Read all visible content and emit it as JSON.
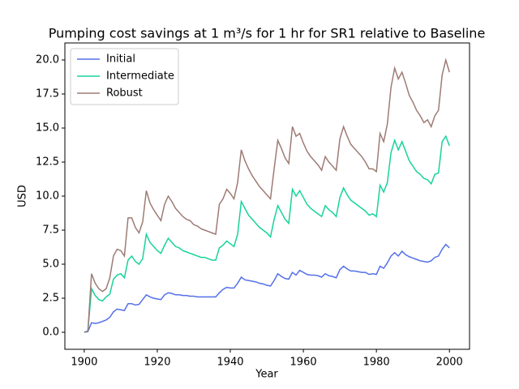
{
  "chart_data": {
    "type": "line",
    "title": "Pumping cost savings at 1 m³/s for 1 hr for SR1 relative to Baseline",
    "x_label": "Year",
    "y_label": "USD",
    "x": [
      1900,
      1901,
      1902,
      1903,
      1904,
      1905,
      1906,
      1907,
      1908,
      1909,
      1910,
      1911,
      1912,
      1913,
      1914,
      1915,
      1916,
      1917,
      1918,
      1919,
      1920,
      1921,
      1922,
      1923,
      1924,
      1925,
      1926,
      1927,
      1928,
      1929,
      1930,
      1931,
      1932,
      1933,
      1934,
      1935,
      1936,
      1937,
      1938,
      1939,
      1940,
      1941,
      1942,
      1943,
      1944,
      1945,
      1946,
      1947,
      1948,
      1949,
      1950,
      1951,
      1952,
      1953,
      1954,
      1955,
      1956,
      1957,
      1958,
      1959,
      1960,
      1961,
      1962,
      1963,
      1964,
      1965,
      1966,
      1967,
      1968,
      1969,
      1970,
      1971,
      1972,
      1973,
      1974,
      1975,
      1976,
      1977,
      1978,
      1979,
      1980,
      1981,
      1982,
      1983,
      1984,
      1985,
      1986,
      1987,
      1988,
      1989,
      1990,
      1991,
      1992,
      1993,
      1994,
      1995,
      1996,
      1997,
      1998,
      1999,
      2000
    ],
    "series": [
      {
        "name": "Initial",
        "color": "#5470e8",
        "values": [
          0,
          0.05,
          0.7,
          0.65,
          0.7,
          0.8,
          0.9,
          1.1,
          1.5,
          1.7,
          1.65,
          1.6,
          2.1,
          2.1,
          2.0,
          2.05,
          2.4,
          2.75,
          2.6,
          2.5,
          2.45,
          2.4,
          2.75,
          2.9,
          2.85,
          2.75,
          2.75,
          2.7,
          2.7,
          2.65,
          2.65,
          2.6,
          2.6,
          2.6,
          2.6,
          2.6,
          2.6,
          2.9,
          3.15,
          3.3,
          3.25,
          3.25,
          3.6,
          4.05,
          3.85,
          3.8,
          3.75,
          3.7,
          3.6,
          3.55,
          3.45,
          3.4,
          3.8,
          4.3,
          4.1,
          3.95,
          3.9,
          4.4,
          4.2,
          4.55,
          4.4,
          4.25,
          4.2,
          4.2,
          4.15,
          4.05,
          4.3,
          4.15,
          4.1,
          4.0,
          4.6,
          4.85,
          4.65,
          4.5,
          4.5,
          4.45,
          4.4,
          4.4,
          4.25,
          4.3,
          4.25,
          4.85,
          4.7,
          5.1,
          5.6,
          5.85,
          5.6,
          5.95,
          5.7,
          5.55,
          5.45,
          5.35,
          5.25,
          5.2,
          5.15,
          5.25,
          5.5,
          5.6,
          6.1,
          6.45,
          6.2
        ]
      },
      {
        "name": "Intermediate",
        "color": "#17d39a",
        "values": [
          0,
          0.1,
          3.2,
          2.7,
          2.4,
          2.3,
          2.6,
          2.8,
          3.9,
          4.2,
          4.3,
          4.0,
          5.3,
          5.6,
          5.2,
          5.0,
          5.4,
          7.2,
          6.6,
          6.3,
          6.0,
          5.8,
          6.4,
          6.9,
          6.6,
          6.3,
          6.2,
          6.0,
          5.9,
          5.8,
          5.7,
          5.6,
          5.5,
          5.5,
          5.4,
          5.3,
          5.3,
          6.2,
          6.4,
          6.7,
          6.5,
          6.3,
          7.2,
          9.6,
          9.1,
          8.6,
          8.3,
          8.0,
          7.7,
          7.5,
          7.3,
          7.0,
          8.3,
          9.3,
          8.8,
          8.3,
          8.0,
          10.5,
          10.0,
          10.4,
          9.9,
          9.4,
          9.1,
          8.9,
          8.7,
          8.5,
          9.3,
          9.0,
          8.8,
          8.5,
          9.9,
          10.6,
          10.1,
          9.7,
          9.5,
          9.3,
          9.1,
          8.9,
          8.6,
          8.7,
          8.5,
          10.8,
          10.3,
          11.0,
          13.2,
          14.1,
          13.4,
          14.0,
          13.3,
          12.6,
          12.2,
          11.8,
          11.6,
          11.3,
          11.2,
          10.9,
          11.6,
          11.7,
          14.0,
          14.4,
          13.7
        ]
      },
      {
        "name": "Robust",
        "color": "#9e7b74",
        "values": [
          0,
          0.1,
          4.3,
          3.6,
          3.2,
          3.0,
          3.2,
          4.0,
          5.6,
          6.1,
          6.0,
          5.6,
          8.4,
          8.4,
          7.7,
          7.3,
          8.1,
          10.4,
          9.5,
          9.0,
          8.6,
          8.2,
          9.4,
          10.0,
          9.6,
          9.1,
          8.8,
          8.5,
          8.3,
          8.2,
          7.9,
          7.8,
          7.6,
          7.5,
          7.4,
          7.3,
          7.2,
          9.4,
          9.8,
          10.5,
          10.2,
          9.8,
          11.0,
          13.4,
          12.6,
          12.0,
          11.5,
          11.1,
          10.7,
          10.4,
          10.1,
          9.8,
          12.0,
          14.1,
          13.5,
          12.8,
          12.4,
          15.1,
          14.4,
          14.6,
          13.9,
          13.3,
          12.9,
          12.6,
          12.3,
          11.9,
          12.9,
          12.5,
          12.2,
          11.9,
          14.2,
          15.1,
          14.4,
          13.8,
          13.5,
          13.2,
          12.9,
          12.5,
          12.0,
          12.0,
          11.8,
          14.6,
          14.0,
          15.3,
          18.0,
          19.4,
          18.6,
          19.1,
          18.3,
          17.4,
          16.9,
          16.3,
          15.9,
          15.4,
          15.6,
          15.1,
          15.9,
          16.3,
          18.9,
          20.0,
          19.1
        ]
      }
    ],
    "xlim": [
      1894.7,
      2005.5
    ],
    "ylim": [
      -1.25,
      21.25
    ],
    "xticks": [
      1900,
      1920,
      1940,
      1960,
      1980,
      2000
    ],
    "yticks": [
      {
        "value": 0,
        "label": "0.0"
      },
      {
        "value": 2.5,
        "label": "2.5"
      },
      {
        "value": 5,
        "label": "5.0"
      },
      {
        "value": 7.5,
        "label": "7.5"
      },
      {
        "value": 10,
        "label": "10.0"
      },
      {
        "value": 12.5,
        "label": "12.5"
      },
      {
        "value": 15,
        "label": "15.0"
      },
      {
        "value": 17.5,
        "label": "17.5"
      },
      {
        "value": 20,
        "label": "20.0"
      }
    ],
    "legend": "upper left"
  }
}
